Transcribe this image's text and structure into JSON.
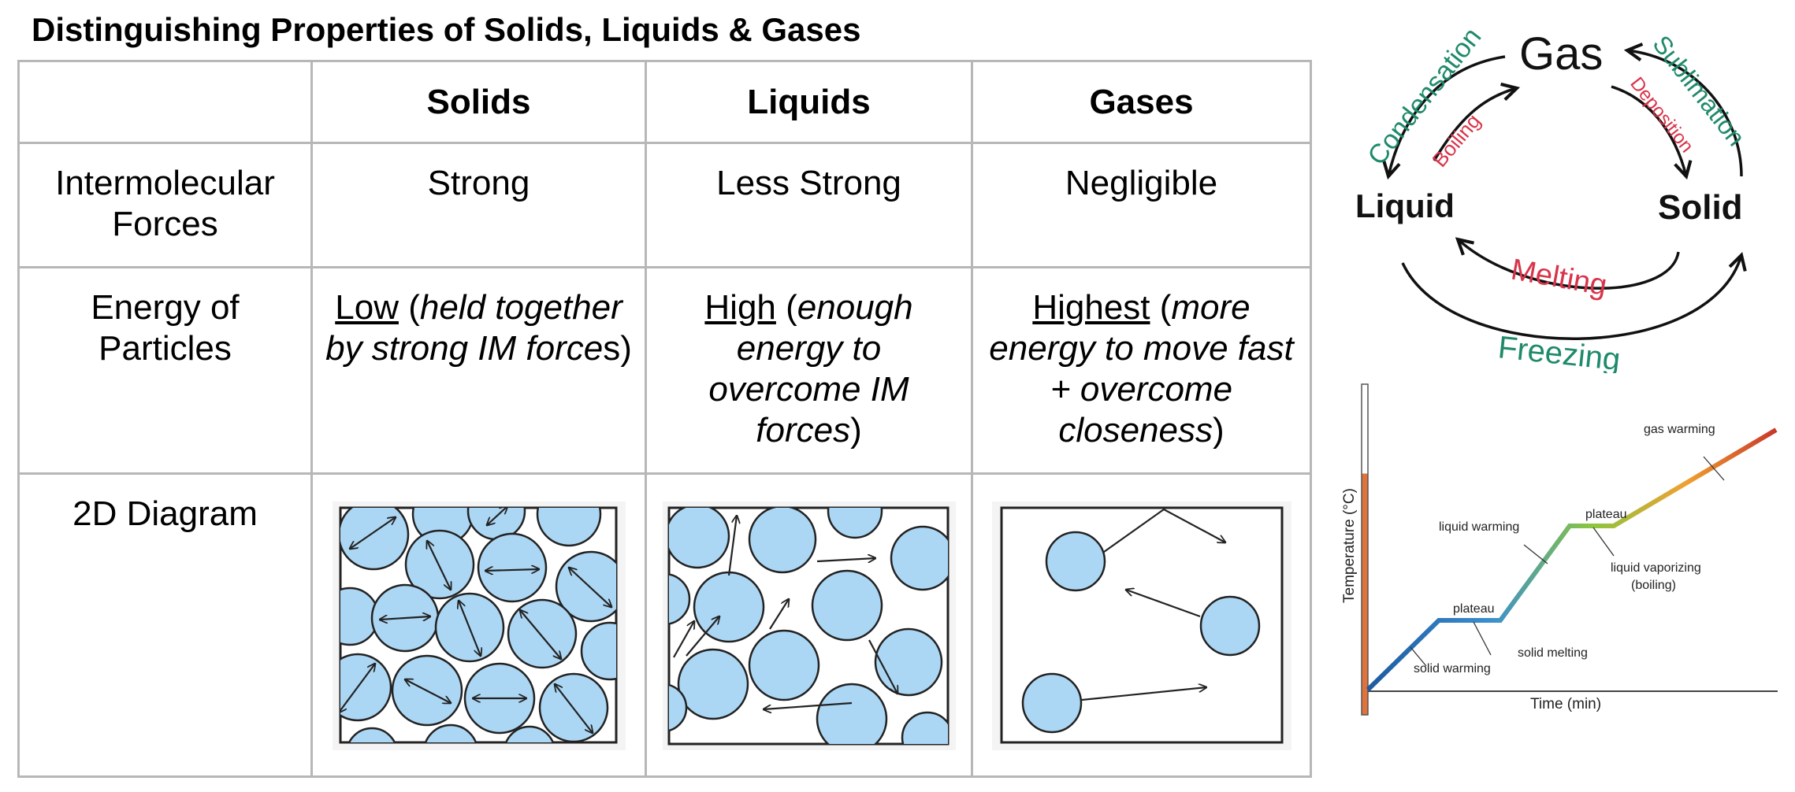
{
  "page": {
    "title": "Distinguishing Properties of Solids, Liquids & Gases"
  },
  "table": {
    "headers": [
      "",
      "Solids",
      "Liquids",
      "Gases"
    ],
    "forces": {
      "label": "Intermolecular Forces",
      "solids": "Strong",
      "liquids": "Less Strong",
      "gases": "Negligible"
    },
    "energy": {
      "label": "Energy of Particles",
      "solids": {
        "level": "Low",
        "open": " (",
        "note": "held together by strong IM force",
        "tail": "s",
        "close": ")"
      },
      "liquids": {
        "level": "High",
        "open": " (",
        "note": "enough energy to overcome IM forces",
        "close": ")"
      },
      "gases": {
        "level": "Highest",
        "open": " (",
        "note": "more energy to move fast + overcome closeness",
        "close": ")"
      }
    },
    "diagram": {
      "label": "2D Diagram"
    }
  },
  "cycle": {
    "states": {
      "gas": "Gas",
      "liquid": "Liquid",
      "solid": "Solid"
    },
    "transitions": {
      "condensation": "Condensation",
      "boiling": "Boiling",
      "sublimation": "Sublimation",
      "deposition": "Deposition",
      "melting": "Melting",
      "freezing": "Freezing"
    },
    "colors": {
      "green": "#1f8a6b",
      "red": "#d8344a",
      "ink": "#111111"
    }
  },
  "heating_curve": {
    "ylabel": "Temperature (°C)",
    "xlabel": "Time (min)",
    "labels": {
      "solid_warming": "solid warming",
      "plateau_1": "plateau",
      "solid_melting": "solid melting",
      "liquid_warming": "liquid warming",
      "plateau_2": "plateau",
      "liquid_vaporizing": "liquid vaporizing",
      "boiling": "(boiling)",
      "gas_warming": "gas warming"
    },
    "gradient": [
      "#1e5aa0",
      "#3a8fd0",
      "#8cc63f",
      "#f0a030",
      "#c8382a"
    ]
  }
}
